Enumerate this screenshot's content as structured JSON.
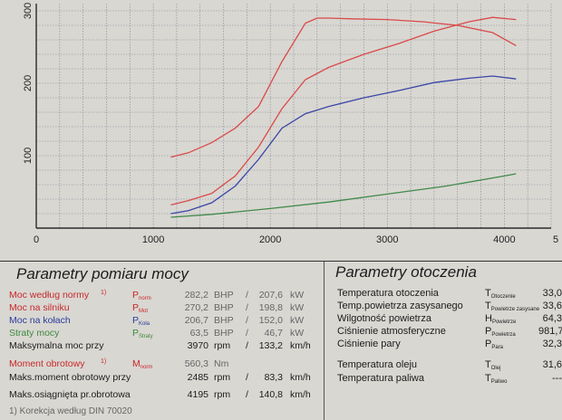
{
  "chart_data": {
    "type": "line",
    "xlim": [
      0,
      4400
    ],
    "ylim": [
      0,
      310
    ],
    "x_ticks": [
      "0",
      "1000",
      "2000",
      "3000",
      "4000",
      "5"
    ],
    "y_ticks": [
      "100",
      "200",
      "300"
    ],
    "grid": true,
    "series": [
      {
        "color": "#d94a4a",
        "x": [
          1150,
          1300,
          1500,
          1700,
          1900,
          2100,
          2300,
          2400,
          2500,
          2700,
          3000,
          3300,
          3600,
          3900,
          4100
        ],
        "y": [
          98,
          104,
          118,
          138,
          168,
          230,
          283,
          290,
          290,
          289,
          288,
          285,
          280,
          270,
          252
        ]
      },
      {
        "color": "#d94a4a",
        "x": [
          1150,
          1300,
          1500,
          1700,
          1900,
          2100,
          2300,
          2500,
          2800,
          3100,
          3400,
          3700,
          3900,
          4100
        ],
        "y": [
          32,
          38,
          48,
          72,
          112,
          165,
          205,
          222,
          240,
          255,
          272,
          285,
          291,
          288
        ]
      },
      {
        "color": "#3a46a8",
        "x": [
          1150,
          1300,
          1500,
          1700,
          1900,
          2100,
          2300,
          2500,
          2800,
          3100,
          3400,
          3700,
          3900,
          4100
        ],
        "y": [
          20,
          24,
          35,
          58,
          95,
          138,
          158,
          168,
          180,
          190,
          201,
          207,
          210,
          206
        ]
      },
      {
        "color": "#3f8a4a",
        "x": [
          1150,
          1500,
          2000,
          2500,
          3000,
          3500,
          4000,
          4100
        ],
        "y": [
          15,
          19,
          27,
          36,
          47,
          58,
          72,
          75
        ]
      }
    ]
  },
  "measurement": {
    "title": "Parametry pomiaru mocy",
    "rows": [
      {
        "label": "Moc według normy",
        "note": "1)",
        "symbol": "P",
        "sub": "norm",
        "v1": "282,2",
        "u1": "BHP",
        "sep": "/",
        "v2": "207,6",
        "u2": "kW",
        "color": "red"
      },
      {
        "label": "Moc na silniku",
        "note": "",
        "symbol": "P",
        "sub": "Mot",
        "v1": "270,2",
        "u1": "BHP",
        "sep": "/",
        "v2": "198,8",
        "u2": "kW",
        "color": "red"
      },
      {
        "label": "Moc na kołach",
        "note": "",
        "symbol": "P",
        "sub": "Koła",
        "v1": "206,7",
        "u1": "BHP",
        "sep": "/",
        "v2": "152,0",
        "u2": "kW",
        "color": "blue"
      },
      {
        "label": "Straty mocy",
        "note": "",
        "symbol": "P",
        "sub": "Straty",
        "v1": "63,5",
        "u1": "BHP",
        "sep": "/",
        "v2": "46,7",
        "u2": "kW",
        "color": "green"
      },
      {
        "label": "Maksymalna moc przy",
        "note": "",
        "symbol": "",
        "sub": "",
        "v1": "3970",
        "u1": "rpm",
        "sep": "/",
        "v2": "133,2",
        "u2": "km/h",
        "color": "black"
      },
      {
        "label": "Moment obrotowy",
        "note": "1)",
        "symbol": "M",
        "sub": "norm",
        "v1": "560,3",
        "u1": "Nm",
        "sep": "",
        "v2": "",
        "u2": "",
        "color": "red"
      },
      {
        "label": "Maks.moment obrotowy przy",
        "note": "",
        "symbol": "",
        "sub": "",
        "v1": "2485",
        "u1": "rpm",
        "sep": "/",
        "v2": "83,3",
        "u2": "km/h",
        "color": "black"
      },
      {
        "label": "Maks.osiągnięta pr.obrotowa",
        "note": "",
        "symbol": "",
        "sub": "",
        "v1": "4195",
        "u1": "rpm",
        "sep": "/",
        "v2": "140,8",
        "u2": "km/h",
        "color": "black"
      }
    ],
    "footer": "1) Korekcja według DIN 70020"
  },
  "environment": {
    "title": "Parametry otoczenia",
    "rows": [
      {
        "label": "Temperatura otoczenia",
        "symbol": "T",
        "sub": "Otoczenie",
        "value": "33,0"
      },
      {
        "label": "Temp.powietrza zasysanego",
        "symbol": "T",
        "sub": "Powietrze zasysane",
        "value": "33,6"
      },
      {
        "label": "Wilgotność powietrza",
        "symbol": "H",
        "sub": "Powietrze",
        "value": "64,3"
      },
      {
        "label": "Ciśnienie atmosferyczne",
        "symbol": "P",
        "sub": "Powietrza",
        "value": "981,7"
      },
      {
        "label": "Ciśnienie pary",
        "symbol": "P",
        "sub": "Para",
        "value": "32,3"
      },
      {
        "label": "Temperatura oleju",
        "symbol": "T",
        "sub": "Olej",
        "value": "31,6"
      },
      {
        "label": "Temperatura paliwa",
        "symbol": "T",
        "sub": "Paliwo",
        "value": "---"
      }
    ]
  }
}
